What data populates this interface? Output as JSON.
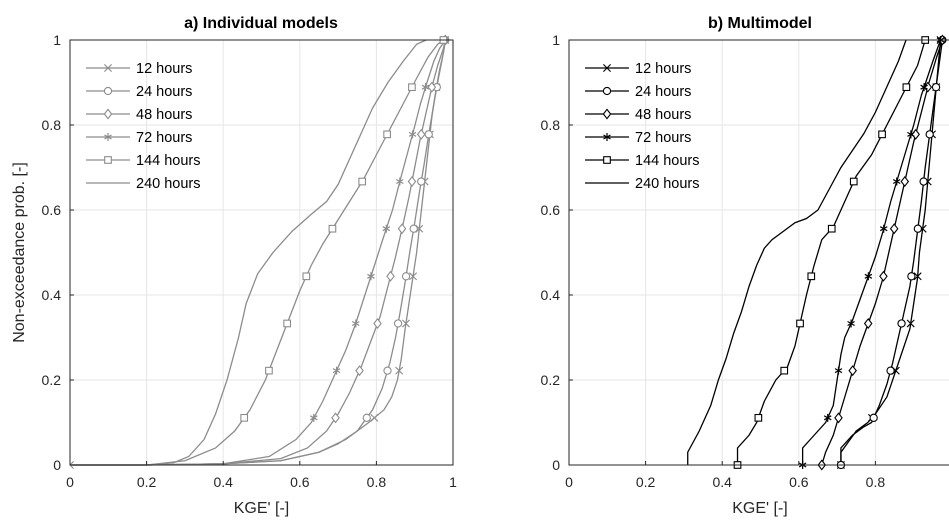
{
  "chart_data": [
    {
      "type": "line",
      "title": "a) Individual models",
      "xlabel": "KGE' [-]",
      "ylabel": "Non-exceedance prob. [-]",
      "xlim": [
        0,
        1
      ],
      "ylim": [
        0,
        1
      ],
      "xticks": [
        "0",
        "0.2",
        "0.4",
        "0.6",
        "0.8",
        "1"
      ],
      "yticks": [
        "0",
        "0.2",
        "0.4",
        "0.6",
        "0.8",
        "1"
      ],
      "grid": true,
      "legend_position": "top-left",
      "line_color": "#8c8c8c",
      "series": [
        {
          "name": "12 hours",
          "marker": "x",
          "x": [
            0.0,
            0.2,
            0.4,
            0.55,
            0.65,
            0.72,
            0.78,
            0.82,
            0.84,
            0.855,
            0.865,
            0.875,
            0.885,
            0.895,
            0.905,
            0.915,
            0.925,
            0.935,
            0.945,
            0.955,
            0.965,
            0.975,
            0.98
          ],
          "y": [
            0.0,
            0.0,
            0.003,
            0.01,
            0.03,
            0.06,
            0.1,
            0.13,
            0.16,
            0.2,
            0.25,
            0.32,
            0.38,
            0.44,
            0.5,
            0.58,
            0.66,
            0.74,
            0.82,
            0.88,
            0.93,
            0.97,
            1.0
          ],
          "marker_y": [
            0.0,
            0.111,
            0.222,
            0.333,
            0.444,
            0.556,
            0.667,
            0.778,
            0.889,
            1.0
          ]
        },
        {
          "name": "24 hours",
          "marker": "o",
          "x": [
            0.0,
            0.2,
            0.4,
            0.55,
            0.65,
            0.7,
            0.75,
            0.79,
            0.815,
            0.835,
            0.85,
            0.862,
            0.875,
            0.887,
            0.9,
            0.912,
            0.925,
            0.937,
            0.95,
            0.962,
            0.975,
            0.98
          ],
          "y": [
            0.0,
            0.0,
            0.003,
            0.01,
            0.03,
            0.05,
            0.08,
            0.13,
            0.18,
            0.24,
            0.3,
            0.36,
            0.43,
            0.5,
            0.57,
            0.64,
            0.71,
            0.78,
            0.85,
            0.91,
            0.97,
            1.0
          ],
          "marker_y": [
            0.111,
            0.222,
            0.333,
            0.444,
            0.556,
            0.667,
            0.778,
            0.889,
            1.0
          ]
        },
        {
          "name": "48 hours",
          "marker": "diamond",
          "x": [
            0.0,
            0.2,
            0.4,
            0.55,
            0.62,
            0.67,
            0.7,
            0.73,
            0.76,
            0.785,
            0.81,
            0.83,
            0.85,
            0.868,
            0.885,
            0.9,
            0.915,
            0.93,
            0.945,
            0.96,
            0.975,
            0.98
          ],
          "y": [
            0.0,
            0.0,
            0.003,
            0.015,
            0.04,
            0.08,
            0.12,
            0.17,
            0.23,
            0.29,
            0.35,
            0.42,
            0.49,
            0.56,
            0.63,
            0.7,
            0.77,
            0.83,
            0.89,
            0.94,
            0.98,
            1.0
          ],
          "marker_y": [
            0.111,
            0.222,
            0.333,
            0.444,
            0.556,
            0.667,
            0.778,
            0.889,
            1.0
          ]
        },
        {
          "name": "72 hours",
          "marker": "asterisk",
          "x": [
            0.0,
            0.2,
            0.4,
            0.52,
            0.59,
            0.63,
            0.66,
            0.69,
            0.72,
            0.745,
            0.77,
            0.795,
            0.82,
            0.842,
            0.862,
            0.88,
            0.898,
            0.915,
            0.932,
            0.95,
            0.965,
            0.98
          ],
          "y": [
            0.0,
            0.0,
            0.003,
            0.02,
            0.06,
            0.1,
            0.15,
            0.21,
            0.27,
            0.33,
            0.4,
            0.47,
            0.54,
            0.6,
            0.67,
            0.73,
            0.79,
            0.85,
            0.9,
            0.95,
            0.98,
            1.0
          ],
          "marker_y": [
            0.111,
            0.222,
            0.333,
            0.444,
            0.556,
            0.667,
            0.778,
            0.889,
            1.0
          ]
        },
        {
          "name": "144 hours",
          "marker": "square",
          "x": [
            0.0,
            0.2,
            0.3,
            0.38,
            0.43,
            0.47,
            0.51,
            0.54,
            0.57,
            0.6,
            0.63,
            0.66,
            0.695,
            0.73,
            0.765,
            0.8,
            0.835,
            0.87,
            0.905,
            0.935,
            0.96,
            0.975
          ],
          "y": [
            0.0,
            0.0,
            0.01,
            0.04,
            0.08,
            0.13,
            0.2,
            0.27,
            0.34,
            0.41,
            0.47,
            0.52,
            0.57,
            0.62,
            0.67,
            0.73,
            0.79,
            0.85,
            0.91,
            0.96,
            0.99,
            1.0
          ],
          "marker_y": [
            0.111,
            0.222,
            0.333,
            0.444,
            0.556,
            0.667,
            0.778,
            0.889,
            1.0
          ]
        },
        {
          "name": "240 hours",
          "marker": "none",
          "x": [
            0.0,
            0.2,
            0.27,
            0.31,
            0.35,
            0.38,
            0.41,
            0.44,
            0.46,
            0.49,
            0.53,
            0.58,
            0.63,
            0.67,
            0.7,
            0.73,
            0.76,
            0.79,
            0.83,
            0.87,
            0.905,
            0.93
          ],
          "y": [
            0.0,
            0.0,
            0.005,
            0.02,
            0.06,
            0.12,
            0.2,
            0.3,
            0.38,
            0.45,
            0.5,
            0.55,
            0.59,
            0.62,
            0.66,
            0.72,
            0.78,
            0.84,
            0.9,
            0.95,
            0.99,
            1.0
          ]
        }
      ]
    },
    {
      "type": "line",
      "title": "b) Multimodel",
      "xlabel": "KGE' [-]",
      "ylabel": "",
      "xlim": [
        0,
        1
      ],
      "ylim": [
        0,
        1
      ],
      "xticks": [
        "0",
        "0.2",
        "0.4",
        "0.6",
        "0.8"
      ],
      "yticks": [
        "0",
        "0.2",
        "0.4",
        "0.6",
        "0.8",
        "1"
      ],
      "grid": true,
      "legend_position": "top-left",
      "line_color": "#000000",
      "series": [
        {
          "name": "12 hours",
          "marker": "x",
          "x": [
            0.71,
            0.71,
            0.75,
            0.78,
            0.8,
            0.83,
            0.845,
            0.86,
            0.875,
            0.89,
            0.9,
            0.91,
            0.915,
            0.93,
            0.94,
            0.95,
            0.96,
            0.97
          ],
          "y": [
            0.0,
            0.03,
            0.08,
            0.1,
            0.12,
            0.16,
            0.2,
            0.24,
            0.28,
            0.32,
            0.38,
            0.44,
            0.5,
            0.6,
            0.7,
            0.8,
            0.9,
            1.0
          ],
          "marker_y": [
            0.0,
            0.111,
            0.222,
            0.333,
            0.444,
            0.556,
            0.667,
            0.778,
            0.889,
            1.0
          ]
        },
        {
          "name": "24 hours",
          "marker": "o",
          "x": [
            0.71,
            0.71,
            0.74,
            0.77,
            0.79,
            0.81,
            0.83,
            0.845,
            0.86,
            0.875,
            0.89,
            0.9,
            0.91,
            0.92,
            0.93,
            0.945,
            0.96,
            0.975
          ],
          "y": [
            0.0,
            0.04,
            0.07,
            0.09,
            0.1,
            0.14,
            0.19,
            0.24,
            0.3,
            0.36,
            0.42,
            0.48,
            0.55,
            0.62,
            0.7,
            0.8,
            0.9,
            1.0
          ],
          "marker_y": [
            0.0,
            0.111,
            0.222,
            0.333,
            0.444,
            0.556,
            0.667,
            0.778,
            0.889,
            1.0
          ]
        },
        {
          "name": "48 hours",
          "marker": "diamond",
          "x": [
            0.66,
            0.67,
            0.69,
            0.7,
            0.72,
            0.74,
            0.76,
            0.78,
            0.8,
            0.82,
            0.84,
            0.86,
            0.88,
            0.9,
            0.92,
            0.94,
            0.96,
            0.975
          ],
          "y": [
            0.0,
            0.03,
            0.07,
            0.1,
            0.16,
            0.22,
            0.28,
            0.33,
            0.38,
            0.44,
            0.52,
            0.6,
            0.68,
            0.76,
            0.83,
            0.9,
            0.96,
            1.0
          ],
          "marker_y": [
            0.0,
            0.111,
            0.222,
            0.333,
            0.444,
            0.556,
            0.667,
            0.778,
            0.889,
            1.0
          ]
        },
        {
          "name": "72 hours",
          "marker": "asterisk",
          "x": [
            0.61,
            0.61,
            0.64,
            0.67,
            0.69,
            0.7,
            0.71,
            0.72,
            0.74,
            0.76,
            0.78,
            0.8,
            0.82,
            0.84,
            0.86,
            0.88,
            0.9,
            0.92,
            0.95,
            0.97
          ],
          "y": [
            0.0,
            0.04,
            0.07,
            0.1,
            0.14,
            0.2,
            0.26,
            0.3,
            0.34,
            0.39,
            0.44,
            0.49,
            0.55,
            0.62,
            0.68,
            0.74,
            0.8,
            0.87,
            0.95,
            1.0
          ],
          "marker_y": [
            0.0,
            0.111,
            0.222,
            0.333,
            0.444,
            0.556,
            0.667,
            0.778,
            0.889,
            1.0
          ]
        },
        {
          "name": "144 hours",
          "marker": "square",
          "x": [
            0.44,
            0.44,
            0.47,
            0.49,
            0.51,
            0.54,
            0.57,
            0.59,
            0.6,
            0.62,
            0.64,
            0.66,
            0.69,
            0.72,
            0.75,
            0.79,
            0.83,
            0.87,
            0.91,
            0.93
          ],
          "y": [
            0.0,
            0.04,
            0.07,
            0.1,
            0.15,
            0.2,
            0.23,
            0.28,
            0.32,
            0.4,
            0.47,
            0.53,
            0.56,
            0.62,
            0.68,
            0.73,
            0.8,
            0.87,
            0.94,
            1.0
          ],
          "marker_y": [
            0.0,
            0.111,
            0.222,
            0.333,
            0.444,
            0.556,
            0.667,
            0.778,
            0.889,
            1.0
          ]
        },
        {
          "name": "240 hours",
          "marker": "none",
          "x": [
            0.31,
            0.31,
            0.34,
            0.37,
            0.39,
            0.41,
            0.43,
            0.45,
            0.47,
            0.49,
            0.51,
            0.53,
            0.56,
            0.59,
            0.62,
            0.65,
            0.68,
            0.71,
            0.74,
            0.77,
            0.8,
            0.83,
            0.86,
            0.88
          ],
          "y": [
            0.0,
            0.03,
            0.08,
            0.14,
            0.2,
            0.25,
            0.31,
            0.36,
            0.42,
            0.47,
            0.51,
            0.53,
            0.55,
            0.57,
            0.58,
            0.6,
            0.65,
            0.7,
            0.74,
            0.78,
            0.83,
            0.89,
            0.95,
            1.0
          ]
        }
      ]
    }
  ]
}
